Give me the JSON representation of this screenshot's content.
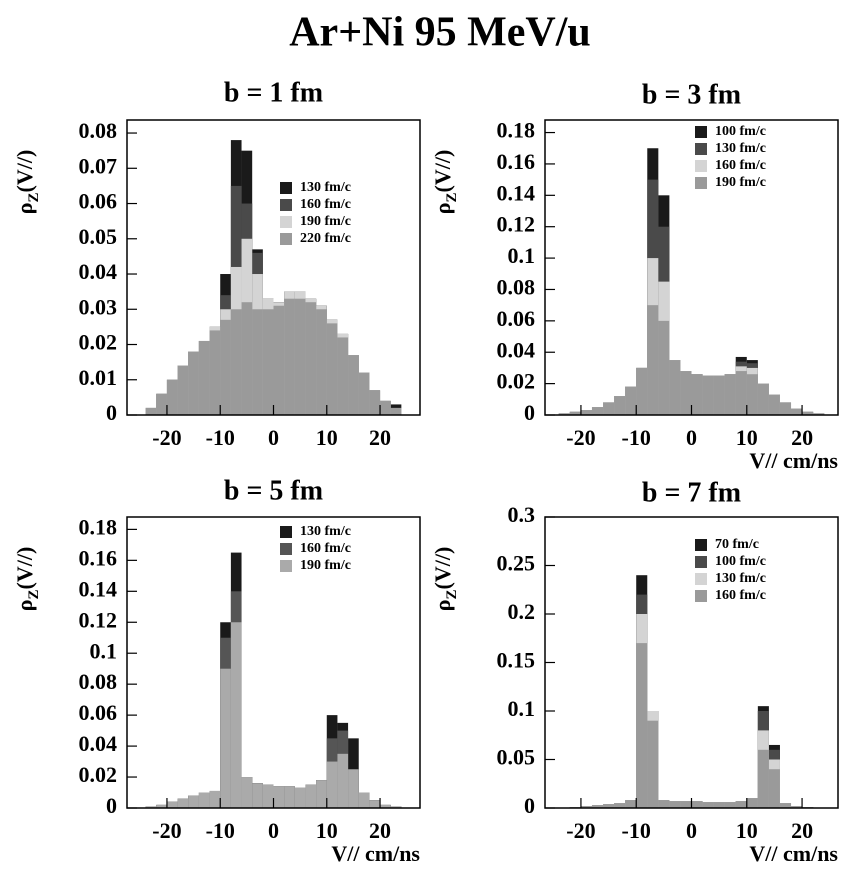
{
  "title": "Ar+Ni 95 MeV/u",
  "chart_data": [
    {
      "type": "histogram",
      "title": "b = 1 fm",
      "y_label": [
        "ρ",
        "Z",
        "(V//)"
      ],
      "bins": [
        -26,
        -24,
        -22,
        -20,
        -18,
        -16,
        -14,
        -12,
        -10,
        -8,
        -6,
        -4,
        -2,
        0,
        2,
        4,
        6,
        8,
        10,
        12,
        14,
        16,
        18,
        20,
        22,
        24,
        26
      ],
      "xlim": [
        -27.5,
        27.5
      ],
      "xticks": [
        -20,
        -10,
        0,
        10,
        20
      ],
      "ylim": [
        0,
        0.0837
      ],
      "yticks": [
        0,
        0.01,
        0.02,
        0.03,
        0.04,
        0.05,
        0.06,
        0.07,
        0.08
      ],
      "series": [
        {
          "name": "130 fm/c",
          "color": "#1a1a1a",
          "values": [
            0,
            0.002,
            0.006,
            0.01,
            0.014,
            0.018,
            0.021,
            0.025,
            0.04,
            0.078,
            0.075,
            0.047,
            0.033,
            0.032,
            0.035,
            0.035,
            0.033,
            0.031,
            0.027,
            0.023,
            0.017,
            0.012,
            0.007,
            0.004,
            0.003,
            0
          ]
        },
        {
          "name": "160 fm/c",
          "color": "#4a4a4a",
          "values": [
            0,
            0.002,
            0.006,
            0.01,
            0.014,
            0.018,
            0.021,
            0.025,
            0.034,
            0.065,
            0.06,
            0.046,
            0.033,
            0.032,
            0.035,
            0.035,
            0.033,
            0.031,
            0.027,
            0.023,
            0.017,
            0.012,
            0.007,
            0.004,
            0.002,
            0
          ]
        },
        {
          "name": "190 fm/c",
          "color": "#d4d4d4",
          "values": [
            0,
            0.002,
            0.006,
            0.01,
            0.014,
            0.018,
            0.021,
            0.025,
            0.03,
            0.042,
            0.05,
            0.04,
            0.033,
            0.032,
            0.035,
            0.035,
            0.033,
            0.031,
            0.027,
            0.023,
            0.017,
            0.012,
            0.007,
            0.004,
            0.002,
            0
          ]
        },
        {
          "name": "220 fm/c",
          "color": "#9a9a9a",
          "values": [
            0,
            0.002,
            0.006,
            0.01,
            0.014,
            0.018,
            0.021,
            0.024,
            0.027,
            0.03,
            0.032,
            0.03,
            0.03,
            0.031,
            0.033,
            0.033,
            0.032,
            0.03,
            0.026,
            0.022,
            0.017,
            0.012,
            0.007,
            0.004,
            0.002,
            0
          ]
        }
      ]
    },
    {
      "type": "histogram",
      "title": "b = 3 fm",
      "y_label": [
        "ρ",
        "Z",
        "(V//)"
      ],
      "x_label": "V// cm/ns",
      "bins": [
        -26,
        -24,
        -22,
        -20,
        -18,
        -16,
        -14,
        -12,
        -10,
        -8,
        -6,
        -4,
        -2,
        0,
        2,
        4,
        6,
        8,
        10,
        12,
        14,
        16,
        18,
        20,
        22,
        24,
        26
      ],
      "xlim": [
        -26.5,
        26.5
      ],
      "xticks": [
        -20,
        -10,
        0,
        10,
        20
      ],
      "ylim": [
        0,
        0.188
      ],
      "yticks": [
        0,
        0.02,
        0.04,
        0.06,
        0.08,
        0.1,
        0.12,
        0.14,
        0.16,
        0.18
      ],
      "series": [
        {
          "name": "100 fm/c",
          "color": "#1a1a1a",
          "values": [
            0,
            0.001,
            0.002,
            0.003,
            0.005,
            0.008,
            0.012,
            0.018,
            0.03,
            0.17,
            0.14,
            0.035,
            0.028,
            0.026,
            0.025,
            0.025,
            0.026,
            0.037,
            0.035,
            0.02,
            0.013,
            0.008,
            0.004,
            0.002,
            0.001,
            0
          ]
        },
        {
          "name": "130 fm/c",
          "color": "#4a4a4a",
          "values": [
            0,
            0.001,
            0.002,
            0.003,
            0.005,
            0.008,
            0.012,
            0.018,
            0.03,
            0.15,
            0.12,
            0.035,
            0.028,
            0.026,
            0.025,
            0.025,
            0.026,
            0.034,
            0.033,
            0.02,
            0.013,
            0.008,
            0.004,
            0.002,
            0.001,
            0
          ]
        },
        {
          "name": "160 fm/c",
          "color": "#d4d4d4",
          "values": [
            0,
            0.001,
            0.002,
            0.003,
            0.005,
            0.008,
            0.012,
            0.018,
            0.03,
            0.1,
            0.085,
            0.035,
            0.028,
            0.026,
            0.025,
            0.025,
            0.026,
            0.031,
            0.03,
            0.02,
            0.013,
            0.008,
            0.004,
            0.002,
            0.001,
            0
          ]
        },
        {
          "name": "190 fm/c",
          "color": "#9a9a9a",
          "values": [
            0,
            0.001,
            0.002,
            0.003,
            0.005,
            0.008,
            0.012,
            0.018,
            0.03,
            0.07,
            0.06,
            0.035,
            0.028,
            0.026,
            0.025,
            0.025,
            0.026,
            0.028,
            0.026,
            0.02,
            0.013,
            0.008,
            0.004,
            0.002,
            0.001,
            0
          ]
        }
      ]
    },
    {
      "type": "histogram",
      "title": "b = 5 fm",
      "y_label": [
        "ρ",
        "Z",
        "(V//)"
      ],
      "x_label": "V// cm/ns",
      "bins": [
        -26,
        -24,
        -22,
        -20,
        -18,
        -16,
        -14,
        -12,
        -10,
        -8,
        -6,
        -4,
        -2,
        0,
        2,
        4,
        6,
        8,
        10,
        12,
        14,
        16,
        18,
        20,
        22,
        24,
        26
      ],
      "xlim": [
        -27.5,
        27.5
      ],
      "xticks": [
        -20,
        -10,
        0,
        10,
        20
      ],
      "ylim": [
        0,
        0.188
      ],
      "yticks": [
        0,
        0.02,
        0.04,
        0.06,
        0.08,
        0.1,
        0.12,
        0.14,
        0.16,
        0.18
      ],
      "series": [
        {
          "name": "130 fm/c",
          "color": "#1a1a1a",
          "values": [
            0,
            0.001,
            0.002,
            0.004,
            0.006,
            0.008,
            0.01,
            0.011,
            0.12,
            0.165,
            0.02,
            0.016,
            0.015,
            0.014,
            0.014,
            0.013,
            0.015,
            0.018,
            0.06,
            0.055,
            0.045,
            0.01,
            0.005,
            0.002,
            0.001,
            0
          ]
        },
        {
          "name": "160 fm/c",
          "color": "#555555",
          "values": [
            0,
            0.001,
            0.002,
            0.004,
            0.006,
            0.008,
            0.01,
            0.011,
            0.11,
            0.14,
            0.02,
            0.016,
            0.015,
            0.014,
            0.014,
            0.013,
            0.015,
            0.018,
            0.045,
            0.05,
            0.025,
            0.01,
            0.005,
            0.002,
            0.001,
            0
          ]
        },
        {
          "name": "190 fm/c",
          "color": "#aaaaaa",
          "values": [
            0,
            0.001,
            0.002,
            0.004,
            0.006,
            0.008,
            0.01,
            0.011,
            0.09,
            0.12,
            0.02,
            0.016,
            0.015,
            0.014,
            0.014,
            0.013,
            0.015,
            0.018,
            0.03,
            0.035,
            0.025,
            0.01,
            0.005,
            0.002,
            0.001,
            0
          ]
        }
      ]
    },
    {
      "type": "histogram",
      "title": "b = 7 fm",
      "y_label": [
        "ρ",
        "Z",
        "(V//)"
      ],
      "x_label": "V// cm/ns",
      "bins": [
        -26,
        -24,
        -22,
        -20,
        -18,
        -16,
        -14,
        -12,
        -10,
        -8,
        -6,
        -4,
        -2,
        0,
        2,
        4,
        6,
        8,
        10,
        12,
        14,
        16,
        18,
        20,
        22,
        24,
        26
      ],
      "xlim": [
        -26.5,
        26.5
      ],
      "xticks": [
        -20,
        -10,
        0,
        10,
        20
      ],
      "ylim": [
        0,
        0.3
      ],
      "yticks": [
        0,
        0.05,
        0.1,
        0.15,
        0.2,
        0.25,
        0.3
      ],
      "series": [
        {
          "name": "70 fm/c",
          "color": "#1a1a1a",
          "values": [
            0,
            0,
            0.001,
            0.002,
            0.003,
            0.004,
            0.005,
            0.008,
            0.24,
            0.1,
            0.008,
            0.007,
            0.007,
            0.007,
            0.006,
            0.006,
            0.006,
            0.007,
            0.01,
            0.105,
            0.065,
            0.005,
            0.002,
            0.001,
            0,
            0
          ]
        },
        {
          "name": "100 fm/c",
          "color": "#4a4a4a",
          "values": [
            0,
            0,
            0.001,
            0.002,
            0.003,
            0.004,
            0.005,
            0.008,
            0.22,
            0.1,
            0.008,
            0.007,
            0.007,
            0.007,
            0.006,
            0.006,
            0.006,
            0.007,
            0.01,
            0.1,
            0.06,
            0.005,
            0.002,
            0.001,
            0,
            0
          ]
        },
        {
          "name": "130 fm/c",
          "color": "#d4d4d4",
          "values": [
            0,
            0,
            0.001,
            0.002,
            0.003,
            0.004,
            0.005,
            0.008,
            0.2,
            0.1,
            0.008,
            0.007,
            0.007,
            0.007,
            0.006,
            0.006,
            0.006,
            0.007,
            0.01,
            0.08,
            0.05,
            0.005,
            0.002,
            0.001,
            0,
            0
          ]
        },
        {
          "name": "160 fm/c",
          "color": "#9a9a9a",
          "values": [
            0,
            0,
            0.001,
            0.002,
            0.003,
            0.004,
            0.005,
            0.008,
            0.17,
            0.09,
            0.008,
            0.007,
            0.007,
            0.007,
            0.006,
            0.006,
            0.006,
            0.007,
            0.01,
            0.06,
            0.04,
            0.005,
            0.002,
            0.001,
            0,
            0
          ]
        }
      ]
    }
  ]
}
